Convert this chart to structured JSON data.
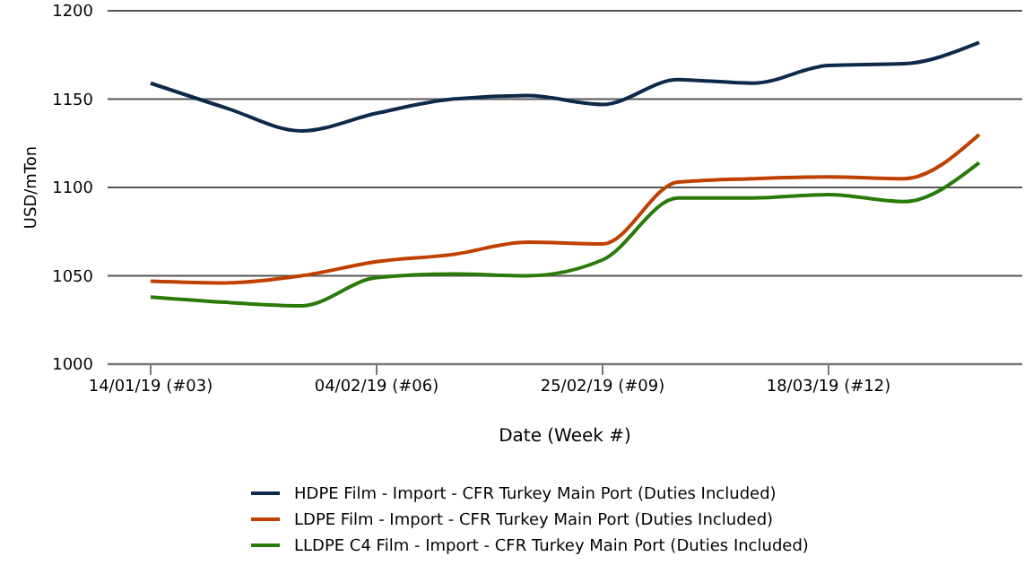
{
  "chart_data": {
    "type": "line",
    "xlabel": "Date (Week #)",
    "ylabel": "USD/mTon",
    "x": [
      "2019-01-14",
      "2019-01-21",
      "2019-01-28",
      "2019-02-04",
      "2019-02-11",
      "2019-02-18",
      "2019-02-25",
      "2019-03-04",
      "2019-03-11",
      "2019-03-18",
      "2019-03-25",
      "2019-04-01"
    ],
    "series": [
      {
        "name": "HDPE Film - Import - CFR Turkey Main Port (Duties Included)",
        "color": "#0d2a4a",
        "values": [
          1159,
          1145,
          1132,
          1142,
          1150,
          1152,
          1147,
          1161,
          1159,
          1169,
          1170,
          1182
        ]
      },
      {
        "name": "LDPE Film - Import - CFR Turkey Main Port (Duties Included)",
        "color": "#c04000",
        "values": [
          1047,
          1046,
          1050,
          1058,
          1062,
          1069,
          1068,
          1103,
          1105,
          1106,
          1105,
          1130
        ]
      },
      {
        "name": "LLDPE C4 Film - Import - CFR Turkey Main Port (Duties Included)",
        "color": "#2a7a0a",
        "values": [
          1038,
          1035,
          1033,
          1049,
          1051,
          1050,
          1059,
          1094,
          1094,
          1096,
          1092,
          1114
        ]
      }
    ],
    "xlim": [
      "2019-01-10",
      "2019-04-05"
    ],
    "xticks": [
      {
        "value": "2019-01-14",
        "label": "14/01/19 (#03)"
      },
      {
        "value": "2019-02-04",
        "label": "04/02/19 (#06)"
      },
      {
        "value": "2019-02-25",
        "label": "25/02/19 (#09)"
      },
      {
        "value": "2019-03-18",
        "label": "18/03/19 (#12)"
      }
    ],
    "ylim": [
      1000,
      1200
    ],
    "yticks": [
      1000,
      1050,
      1100,
      1150,
      1200
    ],
    "grid": "y",
    "legend": "bottom",
    "marker": "none",
    "line_style": "solid"
  }
}
